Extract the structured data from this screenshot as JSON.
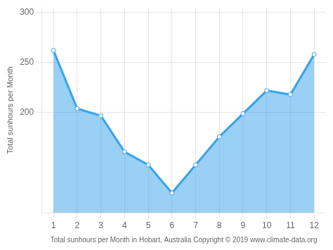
{
  "chart_data": {
    "type": "area",
    "xlabel": "Total sunhours per Month in Hobart, Australia Copyright © 2019 www.climate-data.org",
    "ylabel": "Total sunhours per Month",
    "x": [
      1,
      2,
      3,
      4,
      5,
      6,
      7,
      8,
      9,
      10,
      11,
      12
    ],
    "values": [
      262,
      204,
      197,
      161,
      148,
      120,
      148,
      176,
      199,
      222,
      218,
      258
    ],
    "xlim": [
      0.5,
      12.5
    ],
    "xticks": [
      1,
      2,
      3,
      4,
      5,
      6,
      7,
      8,
      9,
      10,
      11,
      12
    ],
    "ylim": [
      100,
      305
    ],
    "yticks": [
      200,
      250,
      300
    ],
    "marker": "circle",
    "grid": true
  }
}
